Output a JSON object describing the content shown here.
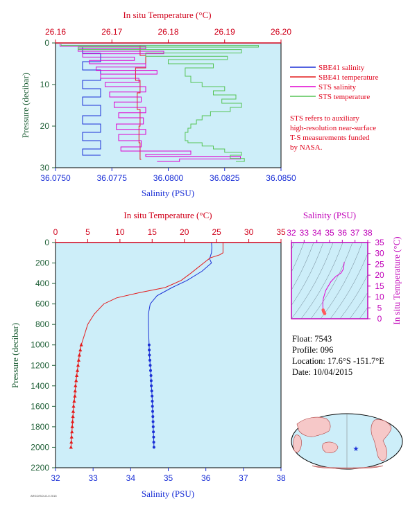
{
  "colors": {
    "plot_bg": "#cdeef9",
    "salinity": "#1a2fd6",
    "temperature": "#e41a1a",
    "sts_salinity": "#e000d0",
    "sts_temperature": "#55c455",
    "red_axis": "#d0001a",
    "blue_axis": "#1a2fd6",
    "pressure_axis": "#1e5f36",
    "magenta_axis": "#c000b8"
  },
  "legend": {
    "items": [
      {
        "label": "SBE41 salinity",
        "color": "#1a2fd6"
      },
      {
        "label": "SBE41 temperature",
        "color": "#e41a1a"
      },
      {
        "label": "STS salinity",
        "color": "#e000d0"
      },
      {
        "label": "STS temperature",
        "color": "#55c455"
      }
    ],
    "note": [
      "STS refers to auxiliary",
      "high-resolution near-surface",
      "T-S measurements funded",
      "by NASA."
    ]
  },
  "float_info": {
    "float": "Float:  7543",
    "profile": "Profile:  096",
    "location": "Location:  17.6°S  -151.7°E",
    "date": "Date:  10/04/2015"
  },
  "footer_tag": "ARGO/SOLO-II 2015",
  "chart_data": [
    {
      "type": "line",
      "panel": "near-surface",
      "top_axis_label": "In situ Temperature (°C)",
      "top_ticks": [
        "26.16",
        "26.17",
        "26.18",
        "26.19",
        "26.20"
      ],
      "top_range": [
        26.16,
        26.2
      ],
      "bottom_axis_label": "Salinity (PSU)",
      "bottom_ticks": [
        "36.0750",
        "36.0775",
        "36.0800",
        "36.0825",
        "36.0850"
      ],
      "bottom_range": [
        36.075,
        36.085
      ],
      "left_axis_label": "Pressure (decibar)",
      "left_ticks": [
        "0",
        "10",
        "20",
        "30"
      ],
      "ylim": [
        0,
        30
      ],
      "series": [
        {
          "name": "SBE41 salinity",
          "color": "#1a2fd6",
          "points": [
            [
              36.0762,
              1.0
            ],
            [
              36.077,
              2.5
            ],
            [
              36.0762,
              4.5
            ],
            [
              36.077,
              6.5
            ],
            [
              36.0762,
              9.0
            ],
            [
              36.077,
              11.0
            ],
            [
              36.0762,
              13.0
            ],
            [
              36.077,
              15.0
            ],
            [
              36.0762,
              17.5
            ],
            [
              36.077,
              19.5
            ],
            [
              36.0762,
              21.5
            ],
            [
              36.077,
              23.5
            ],
            [
              36.0762,
              25.5
            ],
            [
              36.077,
              27.0
            ]
          ]
        },
        {
          "name": "SBE41 temperature",
          "color": "#e41a1a",
          "points": [
            [
              26.175,
              0.5
            ],
            [
              26.176,
              3.0
            ],
            [
              26.1742,
              6.0
            ],
            [
              26.175,
              9.0
            ],
            [
              26.1745,
              12.0
            ],
            [
              26.175,
              16.0
            ],
            [
              26.1748,
              20.0
            ],
            [
              26.175,
              24.0
            ],
            [
              26.1752,
              28.0
            ]
          ]
        },
        {
          "name": "STS salinity",
          "color": "#e000d0",
          "points": [
            [
              36.0752,
              0.3
            ],
            [
              36.079,
              0.8
            ],
            [
              36.076,
              1.4
            ],
            [
              36.0798,
              2.0
            ],
            [
              36.0762,
              2.6
            ],
            [
              36.0785,
              3.4
            ],
            [
              36.0765,
              4.2
            ],
            [
              36.079,
              5.0
            ],
            [
              36.0768,
              5.8
            ],
            [
              36.0795,
              6.6
            ],
            [
              36.077,
              7.5
            ],
            [
              36.0787,
              8.5
            ],
            [
              36.0772,
              9.5
            ],
            [
              36.079,
              10.5
            ],
            [
              36.0774,
              11.8
            ],
            [
              36.0788,
              13.0
            ],
            [
              36.0776,
              14.2
            ],
            [
              36.079,
              15.5
            ],
            [
              36.0778,
              16.8
            ],
            [
              36.0789,
              18.0
            ],
            [
              36.0777,
              19.5
            ],
            [
              36.079,
              20.8
            ],
            [
              36.0778,
              22.0
            ],
            [
              36.0788,
              23.5
            ],
            [
              36.0779,
              25.0
            ],
            [
              36.081,
              26.0
            ],
            [
              36.079,
              26.8
            ],
            [
              36.0832,
              27.3
            ],
            [
              36.0805,
              27.9
            ],
            [
              36.0795,
              28.5
            ]
          ]
        },
        {
          "name": "STS temperature",
          "color": "#55c455",
          "points": [
            [
              26.161,
              0.3
            ],
            [
              26.196,
              0.6
            ],
            [
              26.164,
              1.0
            ],
            [
              26.193,
              1.6
            ],
            [
              26.176,
              2.4
            ],
            [
              26.1905,
              3.2
            ],
            [
              26.18,
              4.0
            ],
            [
              26.188,
              5.0
            ],
            [
              26.183,
              6.0
            ],
            [
              26.184,
              8.0
            ],
            [
              26.186,
              9.5
            ],
            [
              26.19,
              10.5
            ],
            [
              26.188,
              11.5
            ],
            [
              26.192,
              12.5
            ],
            [
              26.1895,
              13.5
            ],
            [
              26.193,
              14.5
            ],
            [
              26.191,
              15.5
            ],
            [
              26.1875,
              16.5
            ],
            [
              26.186,
              17.5
            ],
            [
              26.185,
              18.5
            ],
            [
              26.184,
              19.5
            ],
            [
              26.1835,
              20.5
            ],
            [
              26.183,
              21.5
            ],
            [
              26.183,
              22.5
            ],
            [
              26.1835,
              23.5
            ],
            [
              26.186,
              24.0
            ],
            [
              26.188,
              24.8
            ],
            [
              26.19,
              25.5
            ],
            [
              26.193,
              26.3
            ],
            [
              26.191,
              27.0
            ],
            [
              26.1935,
              27.8
            ],
            [
              26.192,
              28.5
            ]
          ]
        }
      ]
    },
    {
      "type": "line",
      "panel": "full-profile",
      "top_axis_label": "In situ Temperature (°C)",
      "top_ticks": [
        "0",
        "5",
        "10",
        "15",
        "20",
        "25",
        "30",
        "35"
      ],
      "top_range": [
        0,
        35
      ],
      "bottom_axis_label": "Salinity (PSU)",
      "bottom_ticks": [
        "32",
        "33",
        "34",
        "35",
        "36",
        "37",
        "38"
      ],
      "bottom_range": [
        32,
        38
      ],
      "left_axis_label": "Pressure (decibar)",
      "left_ticks": [
        "0",
        "200",
        "400",
        "600",
        "800",
        "1000",
        "1200",
        "1400",
        "1600",
        "1800",
        "2000",
        "2200"
      ],
      "ylim": [
        0,
        2200
      ],
      "series": [
        {
          "name": "SBE41 salinity",
          "color": "#1a2fd6",
          "points": [
            [
              36.15,
              0
            ],
            [
              36.16,
              50
            ],
            [
              36.15,
              100
            ],
            [
              36.1,
              160
            ],
            [
              36.15,
              200
            ],
            [
              35.9,
              280
            ],
            [
              35.5,
              370
            ],
            [
              35.1,
              440
            ],
            [
              34.7,
              520
            ],
            [
              34.52,
              600
            ],
            [
              34.47,
              700
            ],
            [
              34.47,
              800
            ],
            [
              34.48,
              900
            ],
            [
              34.49,
              1000
            ],
            [
              34.5,
              1100
            ],
            [
              34.52,
              1200
            ],
            [
              34.54,
              1300
            ],
            [
              34.55,
              1400
            ],
            [
              34.57,
              1500
            ],
            [
              34.58,
              1600
            ],
            [
              34.59,
              1700
            ],
            [
              34.6,
              1800
            ],
            [
              34.61,
              1900
            ],
            [
              34.62,
              2000
            ]
          ]
        },
        {
          "name": "SBE41 temperature",
          "color": "#e41a1a",
          "points": [
            [
              26.0,
              0
            ],
            [
              26.0,
              100
            ],
            [
              25.5,
              120
            ],
            [
              24.0,
              150
            ],
            [
              23.0,
              200
            ],
            [
              21.0,
              300
            ],
            [
              19.5,
              370
            ],
            [
              17.0,
              440
            ],
            [
              13.0,
              490
            ],
            [
              9.5,
              540
            ],
            [
              7.5,
              600
            ],
            [
              6.0,
              700
            ],
            [
              5.0,
              800
            ],
            [
              4.5,
              900
            ],
            [
              4.0,
              1000
            ],
            [
              3.7,
              1100
            ],
            [
              3.5,
              1200
            ],
            [
              3.3,
              1300
            ],
            [
              3.1,
              1400
            ],
            [
              3.0,
              1500
            ],
            [
              2.8,
              1600
            ],
            [
              2.7,
              1700
            ],
            [
              2.6,
              1800
            ],
            [
              2.5,
              1900
            ],
            [
              2.4,
              2000
            ]
          ]
        }
      ],
      "deep_samples": [
        1000,
        1050,
        1100,
        1150,
        1200,
        1250,
        1300,
        1350,
        1400,
        1450,
        1500,
        1550,
        1600,
        1650,
        1700,
        1750,
        1800,
        1850,
        1900,
        1950,
        2000
      ]
    },
    {
      "type": "scatter",
      "panel": "ts-diagram",
      "top_axis_label": "Salinity (PSU)",
      "top_ticks": [
        "32",
        "33",
        "34",
        "35",
        "36",
        "37",
        "38"
      ],
      "top_range": [
        32,
        38
      ],
      "right_axis_label": "In situ Temperature (°C)",
      "right_ticks": [
        "0",
        "5",
        "10",
        "15",
        "20",
        "25",
        "30",
        "35"
      ],
      "right_range": [
        0,
        35
      ],
      "series": [
        {
          "name": "T-S profile",
          "color": "#e000d0",
          "points": [
            [
              36.15,
              26.0
            ],
            [
              36.1,
              23.0
            ],
            [
              35.9,
              21.0
            ],
            [
              35.5,
              19.5
            ],
            [
              35.1,
              17.0
            ],
            [
              34.7,
              13.0
            ],
            [
              34.52,
              9.5
            ],
            [
              34.47,
              7.5
            ],
            [
              34.47,
              6.0
            ],
            [
              34.48,
              5.0
            ],
            [
              34.49,
              4.0
            ],
            [
              34.52,
              3.5
            ],
            [
              34.55,
              3.1
            ],
            [
              34.58,
              2.8
            ],
            [
              34.62,
              2.4
            ]
          ]
        }
      ]
    }
  ]
}
